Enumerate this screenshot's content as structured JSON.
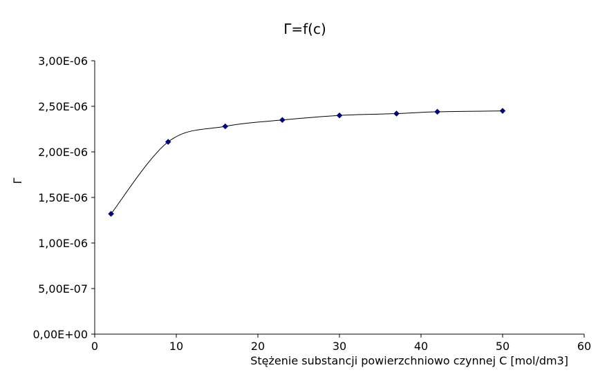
{
  "chart_data": {
    "type": "scatter",
    "title": "Γ=f(c)",
    "xlabel": "Stężenie substancji powierzchniowo czynnej C [mol/dm3]",
    "ylabel": "Γ",
    "xlim": [
      0,
      60
    ],
    "ylim": [
      0,
      3e-06
    ],
    "x_ticks": [
      0,
      10,
      20,
      30,
      40,
      50,
      60
    ],
    "x_tick_labels": [
      "0",
      "10",
      "20",
      "30",
      "40",
      "50",
      "60"
    ],
    "y_ticks": [
      0,
      5e-07,
      1e-06,
      1.5e-06,
      2e-06,
      2.5e-06,
      3e-06
    ],
    "y_tick_labels": [
      "0,00E+00",
      "5,00E-07",
      "1,00E-06",
      "1,50E-06",
      "2,00E-06",
      "2,50E-06",
      "3,00E-06"
    ],
    "grid": false,
    "legend": "none",
    "marker_color": "#000080",
    "line_color": "#000000",
    "trendline": "smooth",
    "series": [
      {
        "x": [
          2,
          9,
          16,
          23,
          30,
          37,
          42,
          50
        ],
        "y": [
          1.32e-06,
          2.11e-06,
          2.28e-06,
          2.35e-06,
          2.4e-06,
          2.42e-06,
          2.44e-06,
          2.45e-06
        ]
      }
    ]
  }
}
